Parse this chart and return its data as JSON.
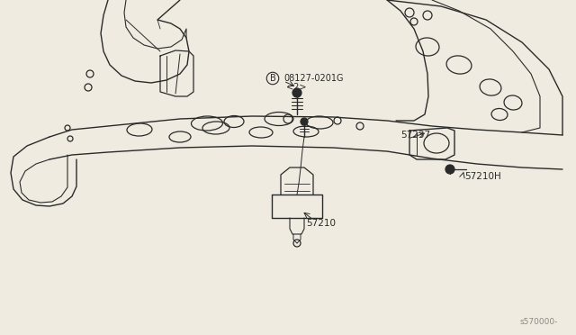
{
  "bg_color": "#f0ebe0",
  "line_color": "#2a2a2a",
  "lw": 0.9,
  "figsize": [
    6.4,
    3.72
  ],
  "dpi": 100,
  "ref_code": "s570000-",
  "label_B_text": "08127-0201G",
  "label_B_sub": "<2>",
  "label_57237": "57237",
  "label_57210H": "57210H",
  "label_57210": "57210",
  "font_size": 7.0,
  "ref_font_size": 6.5
}
